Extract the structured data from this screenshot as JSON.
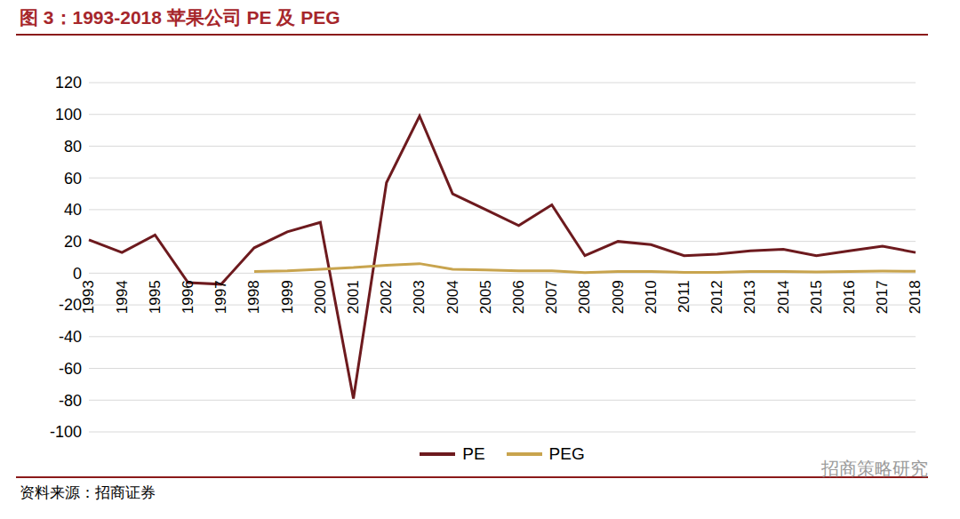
{
  "chart_data": {
    "type": "line",
    "title": "图 3：1993-2018 苹果公司 PE 及 PEG",
    "source": "资料来源：招商证券",
    "watermark": "招商策略研究",
    "categories": [
      "1993",
      "1994",
      "1995",
      "1996",
      "1997",
      "1998",
      "1999",
      "2000",
      "2001",
      "2002",
      "2003",
      "2004",
      "2005",
      "2006",
      "2007",
      "2008",
      "2009",
      "2010",
      "2011",
      "2012",
      "2013",
      "2014",
      "2015",
      "2016",
      "2017",
      "2018"
    ],
    "series": [
      {
        "name": "PE",
        "color": "#6d1a1e",
        "values": [
          21,
          13,
          24,
          -6,
          -7,
          16,
          26,
          32,
          -79,
          57,
          99,
          50,
          40,
          30,
          43,
          11,
          20,
          18,
          11,
          12,
          14,
          15,
          11,
          14,
          17,
          13
        ]
      },
      {
        "name": "PEG",
        "color": "#c8a44e",
        "values": [
          null,
          null,
          null,
          null,
          null,
          1,
          1.5,
          2.5,
          3.5,
          5,
          6,
          2.5,
          2,
          1.5,
          1.5,
          0.3,
          1,
          1,
          0.5,
          0.5,
          1,
          1,
          0.8,
          1,
          1.3,
          1.2
        ]
      }
    ],
    "ylim": [
      -100,
      120
    ],
    "yticks": [
      -100,
      -80,
      -60,
      -40,
      -20,
      0,
      20,
      40,
      60,
      80,
      100,
      120
    ],
    "grid": true,
    "legend": "bottom"
  }
}
